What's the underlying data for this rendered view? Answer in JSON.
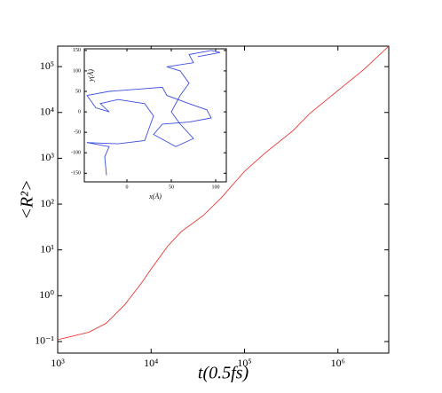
{
  "chart_data": [
    {
      "type": "line",
      "xscale": "log",
      "yscale": "log",
      "xlabel": "t(0.5fs)",
      "ylabel": "<R²>",
      "xlim": [
        1000,
        3500000
      ],
      "ylim": [
        0.056,
        280000
      ],
      "xticks": [
        {
          "value": 1000,
          "label": "10³"
        },
        {
          "value": 10000,
          "label": "10⁴"
        },
        {
          "value": 100000,
          "label": "10⁵"
        },
        {
          "value": 1000000,
          "label": "10⁶"
        }
      ],
      "yticks": [
        {
          "value": 0.1,
          "label": "10⁻¹"
        },
        {
          "value": 1,
          "label": "10⁰"
        },
        {
          "value": 10,
          "label": "10¹"
        },
        {
          "value": 100,
          "label": "10²"
        },
        {
          "value": 1000,
          "label": "10³"
        },
        {
          "value": 10000,
          "label": "10⁴"
        },
        {
          "value": 100000,
          "label": "10⁵"
        }
      ],
      "x": [
        1000,
        2150,
        3300,
        5200,
        7900,
        10000,
        15000,
        21000,
        36000,
        56000,
        100000,
        170000,
        330000,
        500000,
        1000000,
        1900000,
        3500000
      ],
      "series": [
        {
          "color": "#e8251f",
          "values": [
            0.11,
            0.16,
            0.25,
            0.63,
            1.9,
            3.8,
            12,
            25,
            56,
            135,
            520,
            1350,
            4000,
            9500,
            30000,
            87000,
            280000
          ]
        }
      ]
    },
    {
      "type": "line",
      "xscale": "linear",
      "yscale": "linear",
      "xlabel": "x(Å)",
      "ylabel": "y(Å)",
      "xlim": [
        -48,
        112
      ],
      "ylim": [
        -171,
        154
      ],
      "xticks": [
        0,
        50,
        100
      ],
      "yticks": [
        -150,
        -100,
        -50,
        0,
        50,
        100,
        150
      ],
      "x": [
        -23,
        -25,
        -20,
        -45,
        -10,
        20,
        25,
        30,
        20,
        -10,
        -30,
        -20,
        -35,
        -45,
        -20,
        10,
        40,
        45,
        70,
        90,
        95,
        70,
        40,
        30,
        55,
        75,
        60,
        50,
        60,
        70,
        60,
        45,
        75,
        70,
        95,
        105,
        80
      ],
      "series": [
        {
          "color": "#3a4fe0",
          "values": [
            -155,
            -110,
            -85,
            -75,
            -78,
            -70,
            -40,
            -10,
            20,
            30,
            20,
            0,
            10,
            40,
            50,
            55,
            60,
            40,
            20,
            5,
            -15,
            -25,
            -30,
            -55,
            -85,
            -65,
            -30,
            0,
            40,
            70,
            100,
            110,
            120,
            140,
            150,
            145,
            135
          ]
        }
      ]
    }
  ]
}
